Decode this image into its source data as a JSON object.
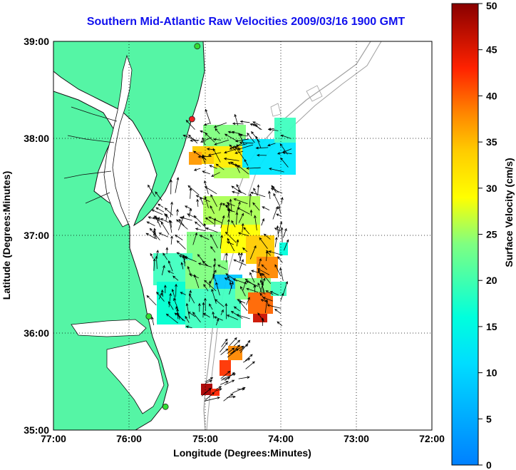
{
  "title": "Southern Mid-Atlantic Raw Velocities 2009/03/16 1900 GMT",
  "map": {
    "xlabel": "Longitude (Degrees:Minutes)",
    "ylabel": "Latitude (Degrees:Minutes)",
    "lon_ticks": [
      "77:00",
      "76:00",
      "75:00",
      "74:00",
      "73:00",
      "72:00"
    ],
    "lat_ticks": [
      "39:00",
      "38:00",
      "37:00",
      "36:00",
      "35:00"
    ],
    "lon_range": [
      -77,
      -72
    ],
    "lat_range": [
      35,
      39
    ],
    "grid": "dotted",
    "land_color": "#55f5a5",
    "sea_color": "#ffffff",
    "coast_color": "#000000",
    "bathymetry_color": "#a0a0a0",
    "stations": [
      {
        "lon": -75.1,
        "lat": 38.95,
        "color": "#33dd33"
      },
      {
        "lon": -75.17,
        "lat": 38.2,
        "color": "#ee2222"
      },
      {
        "lon": -75.74,
        "lat": 36.17,
        "color": "#33dd33"
      },
      {
        "lon": -75.52,
        "lat": 35.24,
        "color": "#33dd33"
      }
    ]
  },
  "colorbar": {
    "label": "Surface Velocity (cm/s)",
    "ticks": [
      "0",
      "5",
      "10",
      "15",
      "20",
      "25",
      "30",
      "35",
      "40",
      "45",
      "50"
    ],
    "range": [
      0,
      50
    ],
    "colormap": "jet"
  }
}
